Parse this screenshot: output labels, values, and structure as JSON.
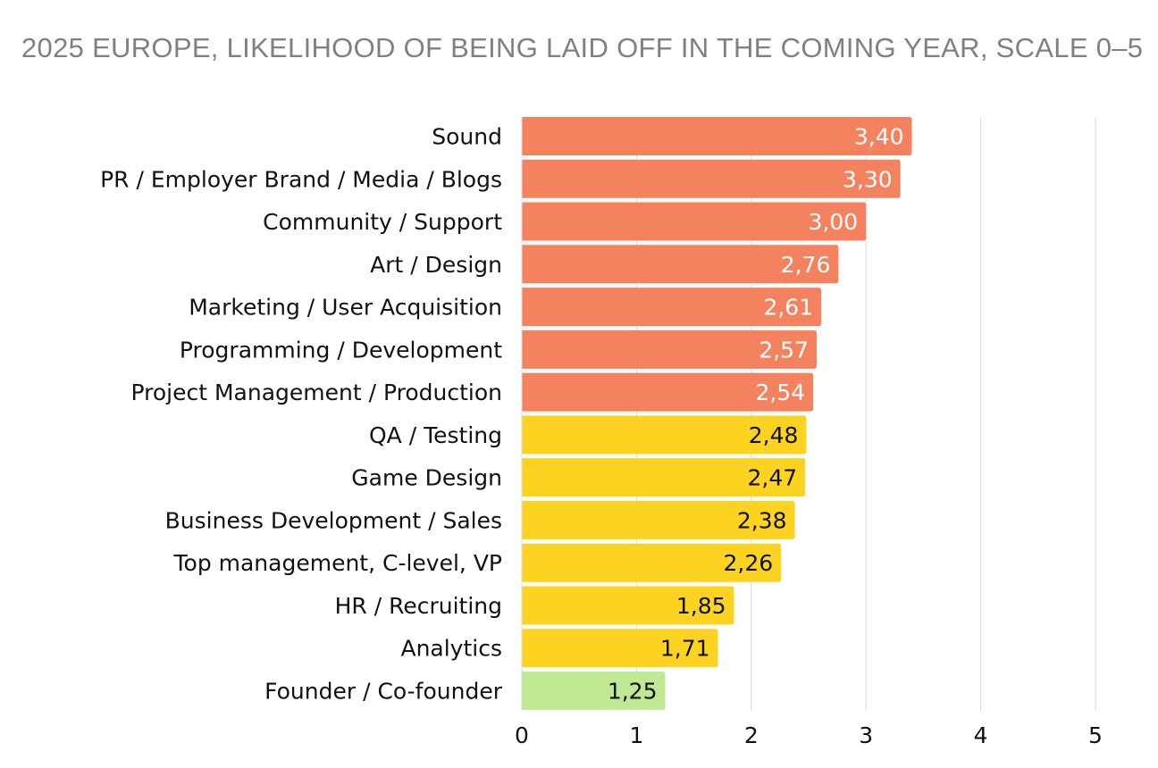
{
  "chart_data": {
    "type": "bar",
    "orientation": "horizontal",
    "title": "2025 EUROPE, LIKELIHOOD OF BEING LAID OFF IN THE COMING YEAR, SCALE 0–5",
    "xlabel": "",
    "ylabel": "",
    "xlim": [
      0,
      5
    ],
    "xticks": [
      "0",
      "1",
      "2",
      "3",
      "4",
      "5"
    ],
    "grid": true,
    "categories": [
      "Sound",
      "PR / Employer Brand / Media / Blogs",
      "Community / Support",
      "Art / Design",
      "Marketing / User Acquisition",
      "Programming / Development",
      "Project Management / Production",
      "QA / Testing",
      "Game Design",
      "Business Development / Sales",
      "Top management, C-level, VP",
      "HR / Recruiting",
      "Analytics",
      "Founder / Co-founder"
    ],
    "values": [
      3.4,
      3.3,
      3.0,
      2.76,
      2.61,
      2.57,
      2.54,
      2.48,
      2.47,
      2.38,
      2.26,
      1.85,
      1.71,
      1.25
    ],
    "labels": [
      "3,40",
      "3,30",
      "3,00",
      "2,76",
      "2,61",
      "2,57",
      "2,54",
      "2,48",
      "2,47",
      "2,38",
      "2,26",
      "1,85",
      "1,71",
      "1,25"
    ],
    "color_groups": [
      "high",
      "high",
      "high",
      "high",
      "high",
      "high",
      "high",
      "mid",
      "mid",
      "mid",
      "mid",
      "mid",
      "mid",
      "low"
    ],
    "colors": {
      "high": "#F4825E",
      "mid": "#FDD321",
      "low": "#C0E993",
      "label_high": "#FFFFFF",
      "label_other": "#111111",
      "grid": "#D9D9D9"
    }
  }
}
